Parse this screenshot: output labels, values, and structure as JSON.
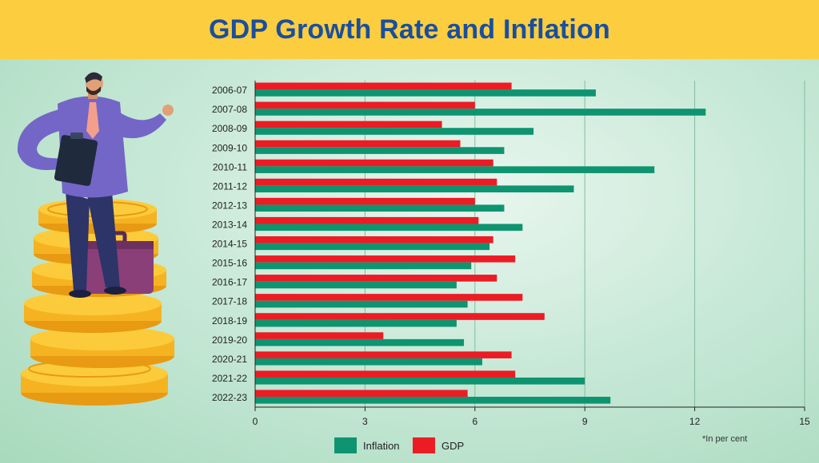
{
  "title": "GDP Growth Rate and Inflation",
  "note": "*In per cent",
  "colors": {
    "banner": "#fccd3f",
    "title": "#1a4f9e",
    "inflation": "#0e9470",
    "gdp": "#ec1c24"
  },
  "chart_data": {
    "type": "bar",
    "orientation": "horizontal",
    "title": "GDP Growth Rate and Inflation",
    "categories": [
      "2006-07",
      "2007-08",
      "2008-09",
      "2009-10",
      "2010-11",
      "2011-12",
      "2012-13",
      "2013-14",
      "2014-15",
      "2015-16",
      "2016-17",
      "2017-18",
      "2018-19",
      "2019-20",
      "2020-21",
      "2021-22",
      "2022-23"
    ],
    "series": [
      {
        "name": "GDP",
        "color": "#ec1c24",
        "values": [
          7.0,
          6.0,
          5.1,
          5.6,
          6.5,
          6.6,
          6.0,
          6.1,
          6.5,
          7.1,
          6.6,
          7.3,
          7.9,
          3.5,
          7.0,
          7.1,
          5.8
        ]
      },
      {
        "name": "Inflation",
        "color": "#0e9470",
        "values": [
          9.3,
          12.3,
          7.6,
          6.8,
          10.9,
          8.7,
          6.8,
          7.3,
          6.4,
          5.9,
          5.5,
          5.8,
          5.5,
          5.7,
          6.2,
          9.0,
          9.7
        ]
      }
    ],
    "xlim": [
      0,
      15
    ],
    "xticks": [
      0,
      3,
      6,
      9,
      12,
      15
    ],
    "legend": [
      {
        "name": "Inflation",
        "color": "#0e9470"
      },
      {
        "name": "GDP",
        "color": "#ec1c24"
      }
    ],
    "legend_position": "bottom",
    "grid": true
  }
}
